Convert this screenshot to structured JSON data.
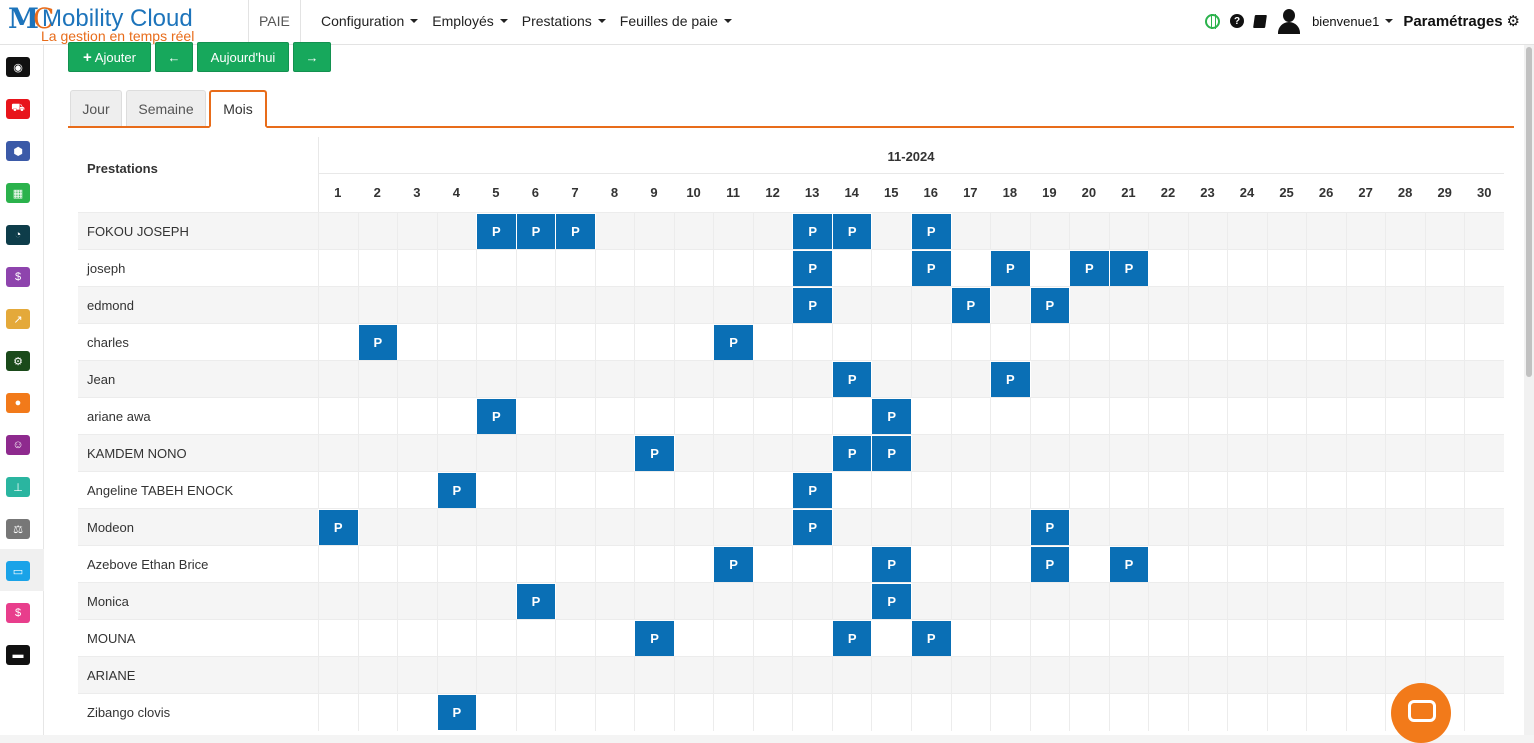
{
  "app": {
    "logo_mark_m": "M",
    "logo_mark_c": "C",
    "logo_name": "Mobility Cloud",
    "logo_tagline": "La gestion en temps réel",
    "module": "PAIE"
  },
  "nav": [
    {
      "label": "Configuration"
    },
    {
      "label": "Employés"
    },
    {
      "label": "Prestations"
    },
    {
      "label": "Feuilles de paie"
    }
  ],
  "header_right": {
    "help_glyph": "?",
    "user": "bienvenue1",
    "settings": "Paramétrages",
    "settings_icon": "⚙"
  },
  "sidebar": [
    {
      "icon": "dashboard-icon",
      "color": "#111111",
      "glyph": "◉"
    },
    {
      "icon": "cart-icon",
      "color": "#e8141b",
      "glyph": "⛟"
    },
    {
      "icon": "cubes-icon",
      "color": "#3b5aa8",
      "glyph": "⬢"
    },
    {
      "icon": "calculator-icon",
      "color": "#2bb24c",
      "glyph": "▦"
    },
    {
      "icon": "pie-chart-icon",
      "color": "#0e3d4a",
      "glyph": "◔"
    },
    {
      "icon": "money-icon",
      "color": "#8e44ad",
      "glyph": "$"
    },
    {
      "icon": "line-chart-icon",
      "color": "#e4a93a",
      "glyph": "↗"
    },
    {
      "icon": "cogs-icon",
      "color": "#1a4a1a",
      "glyph": "⚙"
    },
    {
      "icon": "users-icon",
      "color": "#f27a1a",
      "glyph": "●"
    },
    {
      "icon": "group-icon",
      "color": "#8e2a8e",
      "glyph": "☺"
    },
    {
      "icon": "sitemap-icon",
      "color": "#2ab5a0",
      "glyph": "⊥"
    },
    {
      "icon": "balance-icon",
      "color": "#777777",
      "glyph": "⚖"
    },
    {
      "icon": "credit-card-icon",
      "color": "#1aa3e8",
      "glyph": "▭"
    },
    {
      "icon": "payroll-icon",
      "color": "#e83e8c",
      "glyph": "$"
    },
    {
      "icon": "bed-icon",
      "color": "#111111",
      "glyph": "▬"
    }
  ],
  "toolbar": {
    "add_label": "Ajouter",
    "add_glyph": "+",
    "prev_glyph": "←",
    "today_label": "Aujourd'hui",
    "next_glyph": "→"
  },
  "tabs": [
    {
      "label": "Jour",
      "active": false
    },
    {
      "label": "Semaine",
      "active": false
    },
    {
      "label": "Mois",
      "active": true
    }
  ],
  "calendar": {
    "row_header": "Prestations",
    "month": "11-2024",
    "days": [
      1,
      2,
      3,
      4,
      5,
      6,
      7,
      8,
      9,
      10,
      11,
      12,
      13,
      14,
      15,
      16,
      17,
      18,
      19,
      20,
      21,
      22,
      23,
      24,
      25,
      26,
      27,
      28,
      29,
      30
    ],
    "marker": "P",
    "rows": [
      {
        "name": "FOKOU JOSEPH",
        "days": [
          5,
          6,
          7,
          13,
          14,
          16
        ]
      },
      {
        "name": "joseph",
        "days": [
          13,
          16,
          18,
          20,
          21
        ]
      },
      {
        "name": "edmond",
        "days": [
          13,
          17,
          19
        ]
      },
      {
        "name": "charles",
        "days": [
          2,
          11
        ]
      },
      {
        "name": "Jean",
        "days": [
          14,
          18
        ]
      },
      {
        "name": "ariane awa",
        "days": [
          5,
          15
        ]
      },
      {
        "name": "KAMDEM NONO",
        "days": [
          9,
          14,
          15
        ]
      },
      {
        "name": "Angeline TABEH ENOCK",
        "days": [
          4,
          13
        ]
      },
      {
        "name": "Modeon",
        "days": [
          1,
          13,
          19
        ]
      },
      {
        "name": "Azebove Ethan Brice",
        "days": [
          11,
          15,
          19,
          21
        ]
      },
      {
        "name": "Monica",
        "days": [
          6,
          15
        ]
      },
      {
        "name": "MOUNA",
        "days": [
          9,
          14,
          16
        ]
      },
      {
        "name": "ARIANE",
        "days": []
      },
      {
        "name": "Zibango clovis",
        "days": [
          4
        ]
      }
    ]
  }
}
